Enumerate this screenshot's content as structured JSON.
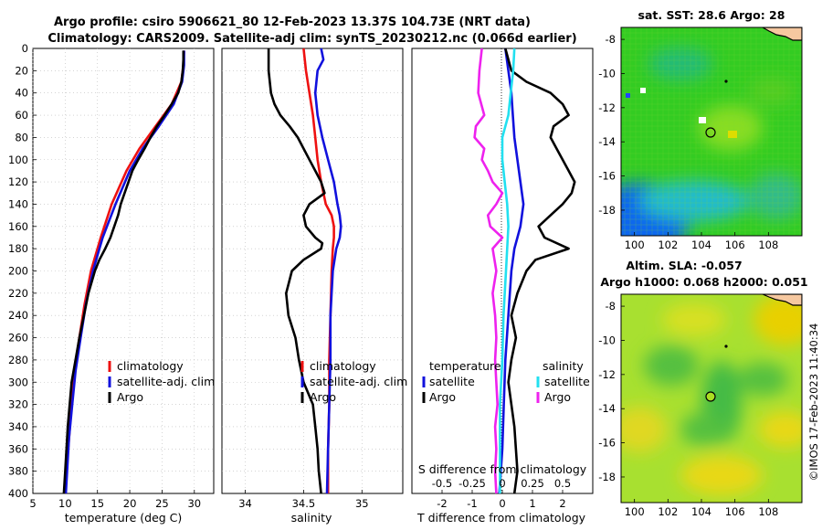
{
  "figure": {
    "title_line1": "Argo profile: csiro 5906621_80 12-Feb-2023 13.37S 104.73E (NRT data)",
    "title_line2": "Climatology: CARS2009. Satellite-adj clim: synTS_20230212.nc (0.066d earlier)",
    "stamp": "©IMOS 17-Feb-2023 11:40:34"
  },
  "colors": {
    "red": "#ee1111",
    "blue": "#1111dd",
    "black": "#000000",
    "cyan": "#22e0f0",
    "magenta": "#ee22ee"
  },
  "chart_data": [
    {
      "type": "line",
      "name": "temperature-profile",
      "xlabel": "temperature (deg C)",
      "xlim": [
        5,
        33
      ],
      "ylim": [
        0,
        400
      ],
      "xticks": [
        "5",
        "10",
        "15",
        "20",
        "25",
        "30"
      ],
      "yticks": [
        "0",
        "20",
        "40",
        "60",
        "80",
        "100",
        "120",
        "140",
        "160",
        "180",
        "200",
        "220",
        "240",
        "260",
        "280",
        "300",
        "320",
        "340",
        "360",
        "380",
        "400"
      ],
      "legend": [
        "climatology",
        "satellite-adj. clim",
        "Argo"
      ],
      "series": [
        {
          "name": "climatology",
          "color": "red",
          "depth": [
            2,
            15,
            30,
            50,
            70,
            90,
            110,
            140,
            170,
            200,
            230,
            260,
            290,
            320,
            350,
            380,
            400
          ],
          "values": [
            28.4,
            28.3,
            28.0,
            26.5,
            24.0,
            21.5,
            19.5,
            17.2,
            15.5,
            14.0,
            13.0,
            12.2,
            11.5,
            11.0,
            10.6,
            10.2,
            10.0
          ]
        },
        {
          "name": "satellite-adj. clim",
          "color": "blue",
          "depth": [
            2,
            15,
            30,
            50,
            70,
            90,
            110,
            140,
            170,
            200,
            230,
            260,
            290,
            320,
            350,
            380,
            400
          ],
          "values": [
            28.4,
            28.4,
            28.1,
            26.8,
            24.5,
            22.0,
            20.0,
            17.8,
            15.8,
            14.3,
            13.2,
            12.4,
            11.6,
            11.1,
            10.6,
            10.3,
            10.1
          ]
        },
        {
          "name": "Argo",
          "color": "black",
          "depth": [
            2,
            10,
            20,
            30,
            40,
            50,
            60,
            70,
            80,
            90,
            100,
            110,
            120,
            130,
            140,
            150,
            160,
            170,
            180,
            190,
            200,
            220,
            240,
            260,
            280,
            300,
            320,
            340,
            360,
            380,
            400
          ],
          "values": [
            28.3,
            28.3,
            28.2,
            28.0,
            27.5,
            26.5,
            25.4,
            24.2,
            23.2,
            22.3,
            21.3,
            20.4,
            19.8,
            19.2,
            18.6,
            18.2,
            17.6,
            17.0,
            16.2,
            15.3,
            14.6,
            13.6,
            12.9,
            12.2,
            11.6,
            11.0,
            10.7,
            10.4,
            10.2,
            10.0,
            9.8
          ]
        }
      ]
    },
    {
      "type": "line",
      "name": "salinity-profile",
      "xlabel": "salinity",
      "xlim": [
        33.8,
        35.35
      ],
      "ylim": [
        0,
        400
      ],
      "xticks": [
        "34",
        "34.5",
        "35"
      ],
      "legend": [
        "climatology",
        "satellite-adj. clim",
        "Argo"
      ],
      "series": [
        {
          "name": "climatology",
          "color": "red",
          "depth": [
            0,
            20,
            40,
            60,
            80,
            100,
            120,
            140,
            150,
            160,
            170,
            180,
            200,
            240,
            280,
            320,
            360,
            400
          ],
          "values": [
            34.5,
            34.52,
            34.55,
            34.58,
            34.6,
            34.62,
            34.65,
            34.69,
            34.74,
            34.76,
            34.76,
            34.75,
            34.74,
            34.73,
            34.72,
            34.72,
            34.71,
            34.71
          ]
        },
        {
          "name": "satellite-adj. clim",
          "color": "blue",
          "depth": [
            0,
            10,
            20,
            40,
            60,
            80,
            100,
            120,
            140,
            150,
            160,
            170,
            180,
            200,
            240,
            280,
            320,
            360,
            400
          ],
          "values": [
            34.65,
            34.67,
            34.62,
            34.6,
            34.62,
            34.66,
            34.71,
            34.76,
            34.79,
            34.81,
            34.82,
            34.81,
            34.78,
            34.75,
            34.73,
            34.73,
            34.72,
            34.71,
            34.7
          ]
        },
        {
          "name": "Argo",
          "color": "black",
          "depth": [
            0,
            10,
            20,
            30,
            40,
            50,
            60,
            70,
            80,
            90,
            100,
            110,
            120,
            130,
            140,
            150,
            160,
            170,
            175,
            180,
            190,
            200,
            220,
            240,
            260,
            280,
            300,
            320,
            340,
            360,
            380,
            400
          ],
          "values": [
            34.2,
            34.2,
            34.2,
            34.21,
            34.22,
            34.25,
            34.3,
            34.38,
            34.45,
            34.5,
            34.55,
            34.6,
            34.65,
            34.68,
            34.55,
            34.5,
            34.52,
            34.6,
            34.66,
            34.65,
            34.5,
            34.4,
            34.35,
            34.37,
            34.43,
            34.46,
            34.5,
            34.58,
            34.6,
            34.62,
            34.63,
            34.65
          ]
        }
      ]
    },
    {
      "type": "line",
      "name": "difference-from-climatology",
      "xlabel": "T difference from climatology",
      "xlabel_top": "S difference from climatology",
      "xlim": [
        -3,
        3
      ],
      "ylim": [
        0,
        400
      ],
      "xticks": [
        "-2",
        "-1",
        "0",
        "1",
        "2"
      ],
      "xticks_top": [
        "-0.5",
        "-0.25",
        "0",
        "0.25",
        "0.5"
      ],
      "legend": {
        "t_header": "temperature",
        "t_items": [
          "satellite",
          "Argo"
        ],
        "s_header": "salinity",
        "s_items": [
          "satellite",
          "Argo"
        ]
      },
      "series": [
        {
          "name": "T satellite",
          "color": "blue",
          "depth": [
            0,
            20,
            40,
            60,
            80,
            100,
            120,
            140,
            160,
            170,
            180,
            200,
            240,
            280,
            320,
            360,
            400
          ],
          "values": [
            0.1,
            0.2,
            0.3,
            0.35,
            0.4,
            0.5,
            0.6,
            0.7,
            0.6,
            0.5,
            0.4,
            0.3,
            0.2,
            0.1,
            0.05,
            0.0,
            -0.1
          ]
        },
        {
          "name": "T Argo",
          "color": "black",
          "depth": [
            0,
            20,
            30,
            40,
            50,
            60,
            70,
            80,
            90,
            100,
            110,
            120,
            130,
            140,
            150,
            160,
            170,
            180,
            190,
            200,
            220,
            240,
            260,
            280,
            300,
            340,
            380,
            400
          ],
          "values": [
            0.1,
            0.3,
            0.8,
            1.6,
            2.0,
            2.2,
            1.7,
            1.6,
            1.8,
            2.0,
            2.2,
            2.4,
            2.3,
            2.0,
            1.6,
            1.2,
            1.4,
            2.2,
            1.1,
            0.8,
            0.5,
            0.3,
            0.45,
            0.3,
            0.2,
            0.4,
            0.5,
            0.4
          ]
        },
        {
          "name": "S satellite",
          "color": "cyan",
          "depth": [
            0,
            20,
            40,
            60,
            80,
            100,
            120,
            140,
            160,
            180,
            200,
            240,
            280,
            320,
            360,
            400
          ],
          "values": [
            0.1,
            0.09,
            0.07,
            0.05,
            0.0,
            0.0,
            0.02,
            0.04,
            0.05,
            0.04,
            0.03,
            0.01,
            0.0,
            -0.02,
            -0.02,
            -0.02
          ]
        },
        {
          "name": "S Argo",
          "color": "magenta",
          "depth": [
            0,
            20,
            40,
            60,
            70,
            80,
            90,
            100,
            110,
            120,
            130,
            140,
            150,
            160,
            170,
            180,
            200,
            220,
            240,
            260,
            280,
            300,
            320,
            340,
            360,
            380,
            400
          ],
          "values": [
            -0.17,
            -0.19,
            -0.2,
            -0.15,
            -0.22,
            -0.23,
            -0.15,
            -0.17,
            -0.12,
            -0.08,
            -0.0,
            -0.05,
            -0.12,
            -0.1,
            -0.0,
            -0.08,
            -0.05,
            -0.08,
            -0.06,
            -0.05,
            -0.06,
            -0.05,
            -0.04,
            -0.06,
            -0.05,
            -0.06,
            -0.05
          ]
        }
      ]
    },
    {
      "type": "heatmap",
      "name": "sst-map",
      "title": "sat. SST: 28.6 Argo: 28",
      "xticks": [
        "100",
        "102",
        "104",
        "106",
        "108"
      ],
      "yticks": [
        "-8",
        "-10",
        "-12",
        "-14",
        "-16",
        "-18"
      ],
      "float_lon": 104.73,
      "float_lat": -13.37
    },
    {
      "type": "heatmap",
      "name": "sla-map",
      "title_line1": "Altim. SLA: -0.057",
      "title_line2": "Argo h1000: 0.068 h2000: 0.051",
      "xticks": [
        "100",
        "102",
        "104",
        "106",
        "108"
      ],
      "yticks": [
        "-8",
        "-10",
        "-12",
        "-14",
        "-16",
        "-18"
      ],
      "float_lon": 104.73,
      "float_lat": -13.37
    }
  ]
}
